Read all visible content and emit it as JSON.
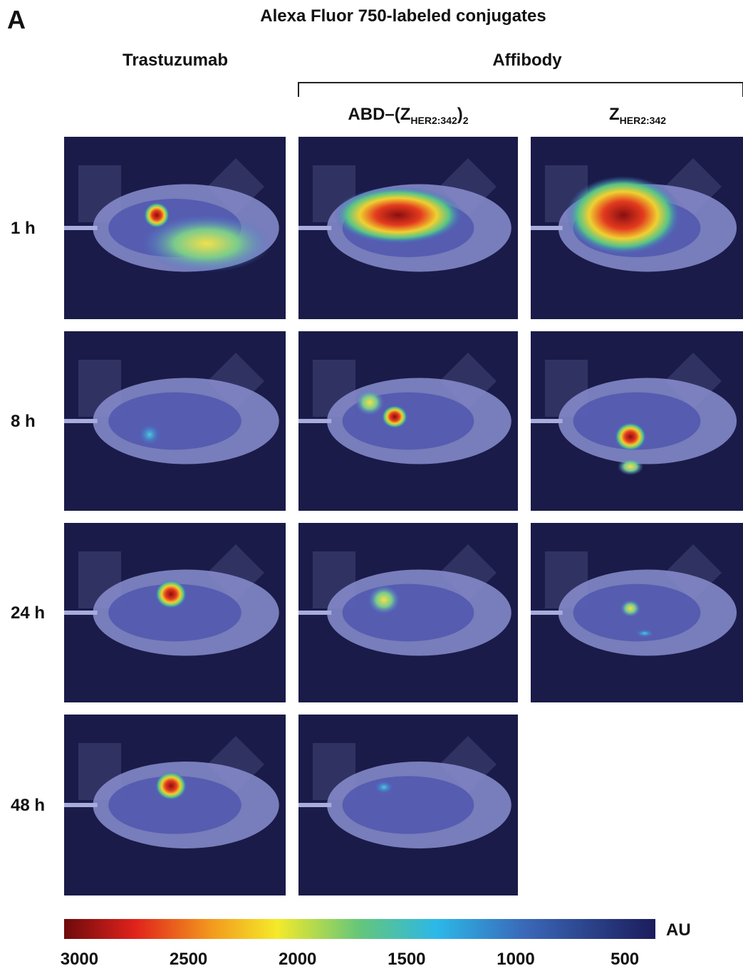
{
  "panel_label": "A",
  "title": "Alexa Fluor 750-labeled conjugates",
  "columns": {
    "trastuzumab": "Trastuzumab",
    "affibody": "Affibody",
    "abd": {
      "main": "ABD–(Z",
      "sub": "HER2:342",
      "close": ")",
      "sub2": "2"
    },
    "z": {
      "main": "Z",
      "sub": "HER2:342"
    }
  },
  "rows": [
    "1 h",
    "8 h",
    "24 h",
    "48 h"
  ],
  "colorbar": {
    "unit": "AU",
    "range": [
      3070,
      360
    ],
    "ticks": [
      3000,
      2500,
      2000,
      1500,
      1000,
      500
    ]
  }
}
